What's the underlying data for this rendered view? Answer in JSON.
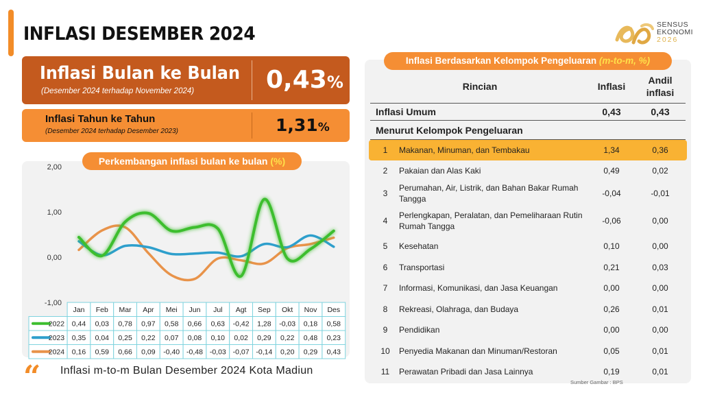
{
  "header": {
    "title": "INFLASI DESEMBER 2024"
  },
  "logo": {
    "line1": "SENSUS",
    "line2": "EKONOMI",
    "line3": "2026"
  },
  "mom": {
    "title": "Inflasi Bulan ke Bulan",
    "subtitle": "(Desember 2024 terhadap November 2024)",
    "value": "0,43",
    "unit": "%"
  },
  "yoy": {
    "title": "Inflasi Tahun ke Tahun",
    "subtitle": "(Desember 2024 terhadap Desember 2023)",
    "value": "1,31",
    "unit": "%"
  },
  "chart_panel": {
    "title": "Perkembangan inflasi bulan ke bulan ",
    "unit": "(%)"
  },
  "chart_data": {
    "type": "line",
    "categories": [
      "Jan",
      "Feb",
      "Mar",
      "Apr",
      "Mei",
      "Jun",
      "Jul",
      "Agt",
      "Sep",
      "Okt",
      "Nov",
      "Des"
    ],
    "series": [
      {
        "name": "2022",
        "color": "#3DBE2E",
        "values": [
          0.44,
          0.03,
          0.78,
          0.97,
          0.58,
          0.66,
          0.63,
          -0.42,
          1.28,
          -0.03,
          0.18,
          0.58
        ],
        "labels": [
          "0,44",
          "0,03",
          "0,78",
          "0,97",
          "0,58",
          "0,66",
          "0,63",
          "-0,42",
          "1,28",
          "-0,03",
          "0,18",
          "0,58"
        ]
      },
      {
        "name": "2023",
        "color": "#2E9FCC",
        "values": [
          0.35,
          0.04,
          0.25,
          0.22,
          0.07,
          0.08,
          0.1,
          0.02,
          0.29,
          0.22,
          0.48,
          0.23
        ],
        "labels": [
          "0,35",
          "0,04",
          "0,25",
          "0,22",
          "0,07",
          "0,08",
          "0,10",
          "0,02",
          "0,29",
          "0,22",
          "0,48",
          "0,23"
        ]
      },
      {
        "name": "2024",
        "color": "#E8934A",
        "values": [
          0.16,
          0.59,
          0.66,
          0.09,
          -0.4,
          -0.48,
          -0.03,
          -0.07,
          -0.14,
          0.2,
          0.29,
          0.43
        ],
        "labels": [
          "0,16",
          "0,59",
          "0,66",
          "0,09",
          "-0,40",
          "-0,48",
          "-0,03",
          "-0,07",
          "-0,14",
          "0,20",
          "0,29",
          "0,43"
        ]
      }
    ],
    "yticks": [
      2.0,
      1.0,
      0.0,
      -1.0
    ],
    "ytick_labels": [
      "2,00",
      "1,00",
      "0,00",
      "-1,00"
    ],
    "ylim": [
      -1.0,
      2.0
    ],
    "grid": false,
    "legend": "table-below"
  },
  "caption": "Inflasi m-to-m Bulan Desember 2024 Kota Madiun",
  "table": {
    "title": "Inflasi Berdasarkan Kelompok Pengeluaran ",
    "title_unit": "(m-to-m, %)",
    "headers": {
      "rincian": "Rincian",
      "inflasi": "Inflasi",
      "andil_line1": "Andil",
      "andil_line2": "inflasi"
    },
    "umum": {
      "label": "Inflasi Umum",
      "inflasi": "0,43",
      "andil": "0,43"
    },
    "group_label": "Menurut Kelompok Pengeluaran",
    "rows": [
      {
        "no": "1",
        "name": "Makanan, Minuman, dan Tembakau",
        "inflasi": "1,34",
        "andil": "0,36",
        "highlight": true
      },
      {
        "no": "2",
        "name": "Pakaian dan Alas Kaki",
        "inflasi": "0,49",
        "andil": "0,02"
      },
      {
        "no": "3",
        "name": "Perumahan, Air, Listrik, dan Bahan Bakar Rumah Tangga",
        "inflasi": "-0,04",
        "andil": "-0,01"
      },
      {
        "no": "4",
        "name": "Perlengkapan, Peralatan, dan Pemeliharaan Rutin Rumah Tangga",
        "inflasi": "-0,06",
        "andil": "0,00"
      },
      {
        "no": "5",
        "name": "Kesehatan",
        "inflasi": "0,10",
        "andil": "0,00"
      },
      {
        "no": "6",
        "name": "Transportasi",
        "inflasi": "0,21",
        "andil": "0,03"
      },
      {
        "no": "7",
        "name": "Informasi, Komunikasi, dan Jasa Keuangan",
        "inflasi": "0,00",
        "andil": "0,00"
      },
      {
        "no": "8",
        "name": "Rekreasi, Olahraga, dan Budaya",
        "inflasi": "0,26",
        "andil": "0,01"
      },
      {
        "no": "9",
        "name": "Pendidikan",
        "inflasi": "0,00",
        "andil": "0,00"
      },
      {
        "no": "10",
        "name": "Penyedia Makanan dan Minuman/Restoran",
        "inflasi": "0,05",
        "andil": "0,01"
      },
      {
        "no": "11",
        "name": "Perawatan Pribadi dan Jasa Lainnya",
        "inflasi": "0,19",
        "andil": "0,01"
      }
    ]
  },
  "source": "Sumber Gambar : BPS"
}
